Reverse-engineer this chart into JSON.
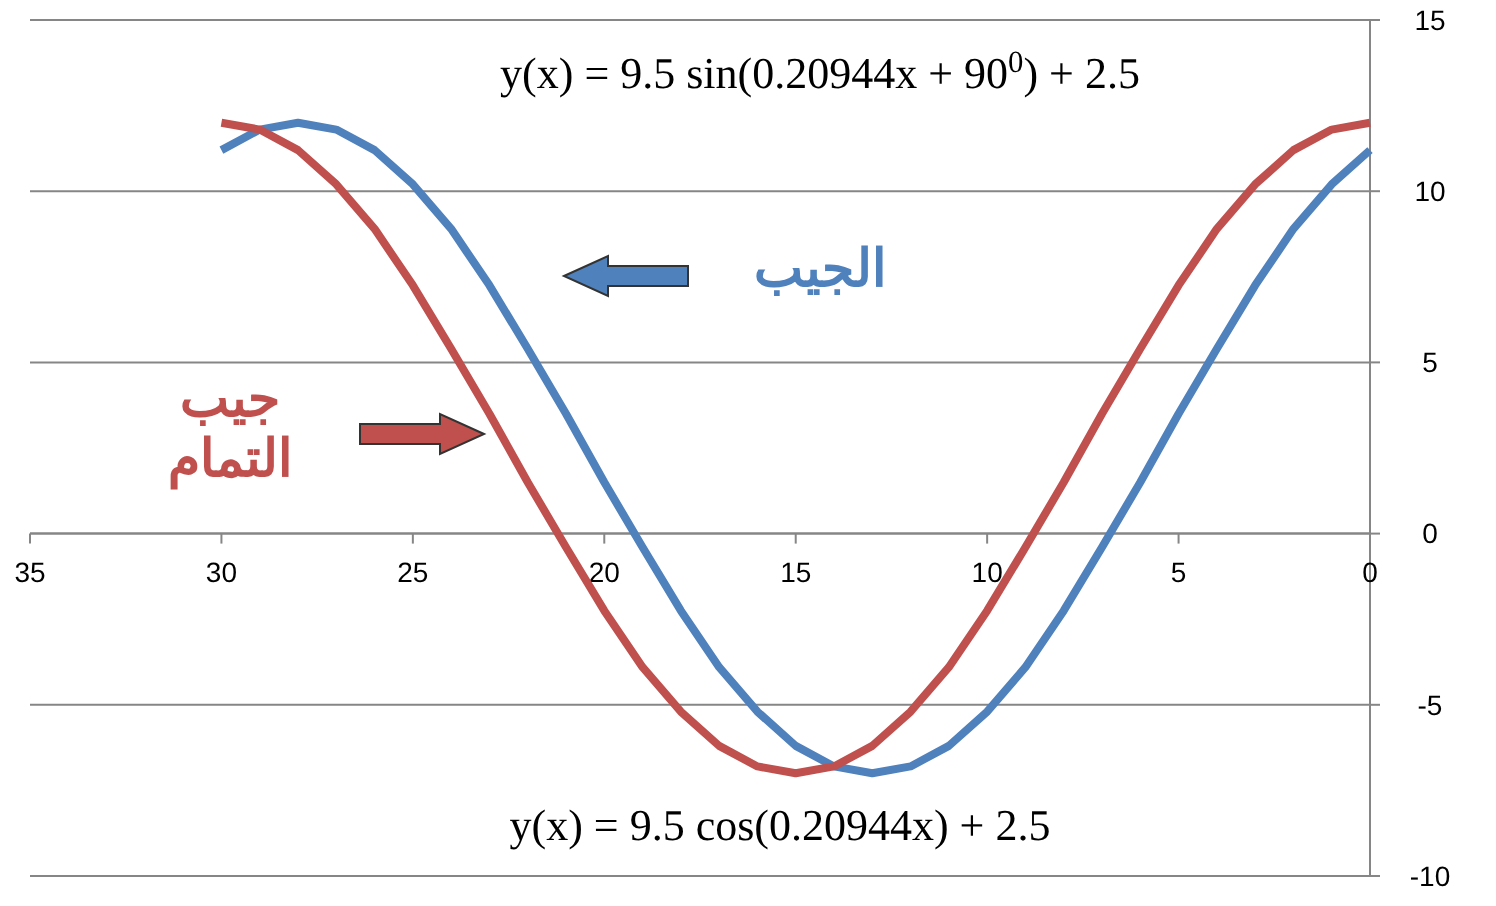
{
  "chart_data": {
    "type": "line",
    "x": [
      0,
      1,
      2,
      3,
      4,
      5,
      6,
      7,
      8,
      9,
      10,
      11,
      12,
      13,
      14,
      15,
      16,
      17,
      18,
      19,
      20,
      21,
      22,
      23,
      24,
      25,
      26,
      27,
      28,
      29,
      30
    ],
    "series": [
      {
        "name": "الجيب",
        "color": "#4f81bd",
        "values": [
          11.2,
          10.2,
          8.9,
          7.25,
          5.4,
          3.5,
          1.5,
          -0.4,
          -2.25,
          -3.9,
          -5.2,
          -6.2,
          -6.8,
          -7,
          -6.8,
          -6.2,
          -5.2,
          -3.9,
          -2.25,
          -0.4,
          1.5,
          3.5,
          5.4,
          7.25,
          8.9,
          10.2,
          11.2,
          11.8,
          12,
          11.8,
          11.2
        ]
      },
      {
        "name": "جيب التمام",
        "color": "#c0504d",
        "values": [
          12,
          11.8,
          11.2,
          10.2,
          8.9,
          7.25,
          5.4,
          3.5,
          1.5,
          -0.4,
          -2.25,
          -3.9,
          -5.2,
          -6.2,
          -6.8,
          -7,
          -6.8,
          -6.2,
          -5.2,
          -3.9,
          -2.25,
          -0.4,
          1.5,
          3.5,
          5.4,
          7.25,
          8.9,
          10.2,
          11.2,
          11.8,
          12
        ]
      }
    ],
    "xlim": [
      35,
      0
    ],
    "xticks": [
      35,
      30,
      25,
      20,
      15,
      10,
      5,
      0
    ],
    "ylim": [
      -10,
      15
    ],
    "yticks": [
      -10,
      -5,
      0,
      5,
      10,
      15
    ],
    "grid": "y",
    "marker": "none",
    "line_style": "solid",
    "annotations": [
      "y(x) = 9.5 sin(0.20944x + 90$^{0}$) + 2.5",
      "y(x) = 9.5 cos(0.20944x) + 2.5"
    ]
  }
}
